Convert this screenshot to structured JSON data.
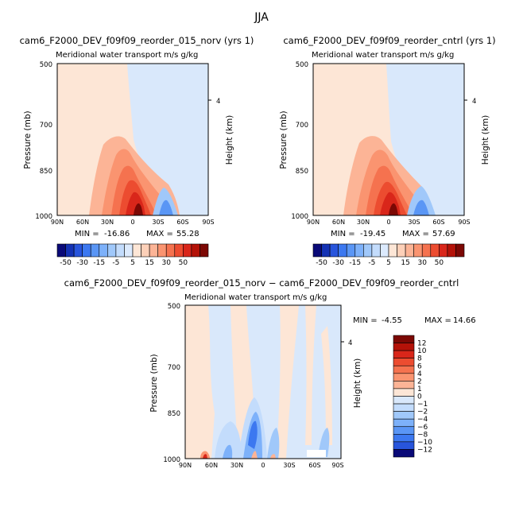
{
  "page": {
    "title": "JJA"
  },
  "colors": {
    "frame": "#000000",
    "neutral_warm": "#fde6d6",
    "neutral_cool": "#d9e8fb"
  },
  "chart_data": [
    {
      "type": "heatmap",
      "id": "panel_norv",
      "title": "cam6_F2000_DEV_f09f09_reorder_015_norv (yrs 1)",
      "subtitle": "Meridional water transport",
      "units": "m/s g/kg",
      "xlabel": "",
      "ylabel": "Pressure (mb)",
      "right_label": "Height (km)",
      "x_ticks": [
        "90N",
        "60N",
        "30N",
        "0",
        "30S",
        "60S",
        "90S"
      ],
      "y_ticks": [
        "500",
        "700",
        "850",
        "1000"
      ],
      "right_ticks": [
        "4"
      ],
      "y_range_mb": [
        1000,
        500
      ],
      "x_range_deg": [
        90,
        -90
      ],
      "min_label": "MIN =",
      "min": "-16.86",
      "max_label": "MAX =",
      "max": "55.28"
    },
    {
      "type": "heatmap",
      "id": "panel_cntrl",
      "title": "cam6_F2000_DEV_f09f09_reorder_cntrl (yrs 1)",
      "subtitle": "Meridional water transport",
      "units": "m/s g/kg",
      "xlabel": "",
      "ylabel": "Pressure (mb)",
      "right_label": "Height (km)",
      "x_ticks": [
        "90N",
        "60N",
        "30N",
        "0",
        "30S",
        "60S",
        "90S"
      ],
      "y_ticks": [
        "500",
        "700",
        "850",
        "1000"
      ],
      "right_ticks": [
        "4"
      ],
      "y_range_mb": [
        1000,
        500
      ],
      "x_range_deg": [
        90,
        -90
      ],
      "min_label": "MIN =",
      "min": "-19.45",
      "max_label": "MAX =",
      "max": "57.69"
    },
    {
      "type": "heatmap",
      "id": "panel_diff",
      "title": "cam6_F2000_DEV_f09f09_reorder_015_norv − cam6_F2000_DEV_f09f09_reorder_cntrl",
      "subtitle": "Meridional water transport",
      "units": "m/s g/kg",
      "xlabel": "",
      "ylabel": "Pressure (mb)",
      "right_label": "Height (km)",
      "x_ticks": [
        "90N",
        "60N",
        "30N",
        "0",
        "30S",
        "60S",
        "90S"
      ],
      "y_ticks": [
        "500",
        "700",
        "850",
        "1000"
      ],
      "right_ticks": [
        "4"
      ],
      "y_range_mb": [
        1000,
        500
      ],
      "x_range_deg": [
        90,
        -90
      ],
      "min_label": "MIN =",
      "min": "-4.55",
      "max_label": "MAX =",
      "max": "14.66"
    }
  ],
  "colorbar_main": {
    "labels": [
      "-50",
      "-30",
      "-15",
      "-5",
      "5",
      "15",
      "30",
      "50"
    ],
    "colors": [
      "#0a0a78",
      "#1432b4",
      "#2855dc",
      "#3c78f0",
      "#5a96f5",
      "#7db1fa",
      "#a0c8fa",
      "#c3dcfc",
      "#dceafd",
      "#fde6d6",
      "#fdd0b8",
      "#fcb496",
      "#fa9470",
      "#f5724f",
      "#ec4c30",
      "#d9261a",
      "#b41208",
      "#7c0804"
    ]
  },
  "colorbar_diff": {
    "labels": [
      "12",
      "10",
      "8",
      "6",
      "4",
      "2",
      "1",
      "0",
      "−1",
      "−2",
      "−4",
      "−6",
      "−8",
      "−10",
      "−12"
    ],
    "colors": [
      "#7c0804",
      "#b41208",
      "#d9261a",
      "#ec4c30",
      "#f5724f",
      "#fa9470",
      "#fcb496",
      "#fde6d6",
      "#d9e8fb",
      "#c3dcfc",
      "#a0c8fa",
      "#7db1fa",
      "#5a96f5",
      "#3c78f0",
      "#2855dc",
      "#0a0a78"
    ]
  }
}
